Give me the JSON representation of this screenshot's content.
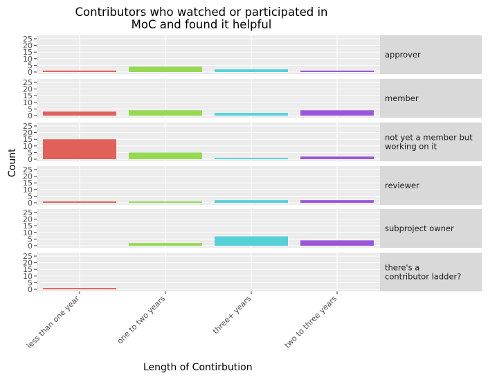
{
  "chart_data": {
    "type": "bar",
    "title_lines": [
      "Contributors who watched or participated in",
      "MoC and found it helpful"
    ],
    "xlabel": "Length of Contirbution",
    "ylabel": "Count",
    "ylim": [
      0,
      25
    ],
    "yticks": [
      0,
      5,
      10,
      15,
      20,
      25
    ],
    "grid": true,
    "legend": "none",
    "facet": "rows",
    "categories": [
      "less than one year",
      "one to two years",
      "three+ years",
      "two to three years"
    ],
    "colors": [
      "#e0605a",
      "#95d953",
      "#56d0d8",
      "#9b55d9"
    ],
    "panel_background": "#ebebeb",
    "strip_background": "#d9d9d9",
    "panels": [
      {
        "label_lines": [
          "approver"
        ],
        "values": [
          1,
          4,
          2,
          1
        ]
      },
      {
        "label_lines": [
          "member"
        ],
        "values": [
          3,
          4,
          2,
          4
        ]
      },
      {
        "label_lines": [
          "not yet a member but",
          "working on it"
        ],
        "values": [
          15,
          5,
          1,
          2
        ]
      },
      {
        "label_lines": [
          "reviewer"
        ],
        "values": [
          1,
          1,
          2,
          2
        ]
      },
      {
        "label_lines": [
          "subproject owner"
        ],
        "values": [
          null,
          2,
          7,
          4
        ]
      },
      {
        "label_lines": [
          "there's a",
          "contributor ladder?"
        ],
        "values": [
          1,
          null,
          null,
          null
        ]
      }
    ]
  }
}
